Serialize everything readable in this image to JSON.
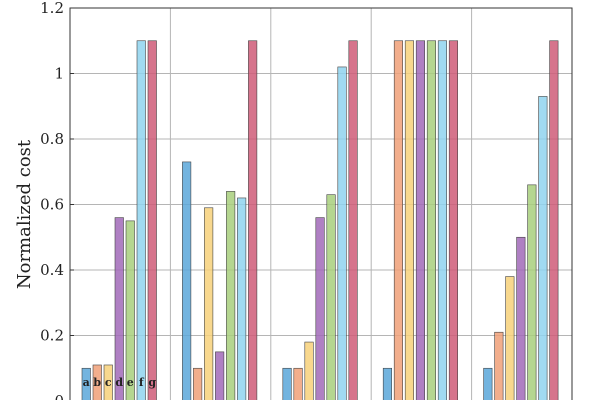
{
  "chart_data": {
    "type": "bar",
    "title": "",
    "xlabel": "",
    "ylabel": "Normalized cost",
    "ylim": [
      0,
      1.2
    ],
    "yticks": [
      0,
      0.2,
      0.4,
      0.6,
      0.8,
      1,
      1.2
    ],
    "ytick_labels": [
      "0",
      "0.2",
      "0.4",
      "0.6",
      "0.8",
      "1",
      "1.2"
    ],
    "grid": true,
    "groups": 5,
    "series": [
      {
        "letter": "a",
        "color": "#5aa7d9",
        "values": [
          0.1,
          0.73,
          0.1,
          0.1,
          0.1
        ]
      },
      {
        "letter": "b",
        "color": "#f0a078",
        "values": [
          0.11,
          0.1,
          0.1,
          1.1,
          0.21
        ]
      },
      {
        "letter": "c",
        "color": "#f7d17a",
        "values": [
          0.11,
          0.59,
          0.18,
          1.1,
          0.38
        ]
      },
      {
        "letter": "d",
        "color": "#a16ab8",
        "values": [
          0.56,
          0.15,
          0.56,
          1.1,
          0.5
        ]
      },
      {
        "letter": "e",
        "color": "#a8cf7c",
        "values": [
          0.55,
          0.64,
          0.63,
          1.1,
          0.66
        ]
      },
      {
        "letter": "f",
        "color": "#8fd4ee",
        "values": [
          1.1,
          0.62,
          1.02,
          1.1,
          0.93
        ]
      },
      {
        "letter": "g",
        "color": "#cf5c78",
        "values": [
          1.1,
          1.1,
          1.1,
          1.1,
          1.1
        ]
      }
    ]
  }
}
